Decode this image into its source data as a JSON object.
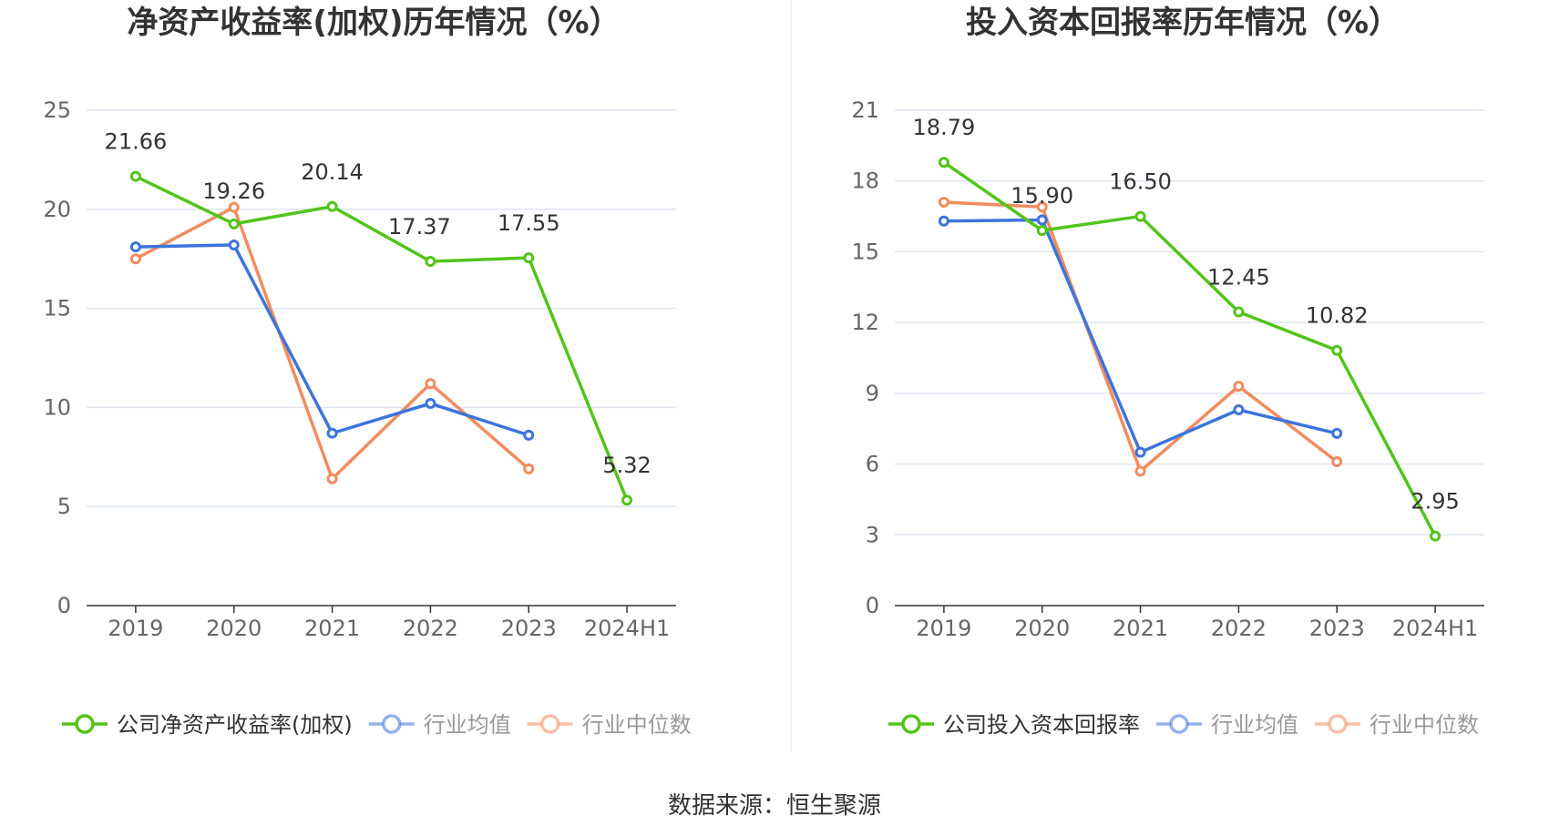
{
  "chart_data": [
    {
      "type": "line",
      "title": "净资产收益率(加权)历年情况（%）",
      "categories": [
        "2019",
        "2020",
        "2021",
        "2022",
        "2023",
        "2024H1"
      ],
      "yticks": [
        "0",
        "5",
        "10",
        "15",
        "20",
        "25"
      ],
      "ylim": [
        0,
        25
      ],
      "grid": true,
      "legend_position": "bottom",
      "series": [
        {
          "name": "公司净资产收益率(加权)",
          "color": "#52c41a",
          "labeled": true,
          "values": [
            21.66,
            19.26,
            20.14,
            17.37,
            17.55,
            5.32
          ],
          "labels": [
            "21.66",
            "19.26",
            "20.14",
            "17.37",
            "17.55",
            "5.32"
          ]
        },
        {
          "name": "行业均值",
          "color": "#3d74db",
          "labeled": false,
          "values": [
            18.1,
            18.2,
            8.7,
            10.2,
            8.6,
            null
          ]
        },
        {
          "name": "行业中位数",
          "color": "#f28c5e",
          "labeled": false,
          "values": [
            17.5,
            20.1,
            6.4,
            11.2,
            6.9,
            null
          ]
        }
      ]
    },
    {
      "type": "line",
      "title": "投入资本回报率历年情况（%）",
      "categories": [
        "2019",
        "2020",
        "2021",
        "2022",
        "2023",
        "2024H1"
      ],
      "yticks": [
        "0",
        "3",
        "6",
        "9",
        "12",
        "15",
        "18",
        "21"
      ],
      "ylim": [
        0,
        21
      ],
      "grid": true,
      "legend_position": "bottom",
      "series": [
        {
          "name": "公司投入资本回报率",
          "color": "#52c41a",
          "labeled": true,
          "values": [
            18.79,
            15.9,
            16.5,
            12.45,
            10.82,
            2.95
          ],
          "labels": [
            "18.79",
            "15.90",
            "16.50",
            "12.45",
            "10.82",
            "2.95"
          ]
        },
        {
          "name": "行业均值",
          "color": "#3d74db",
          "labeled": false,
          "values": [
            16.3,
            16.35,
            6.5,
            8.3,
            7.3,
            null
          ]
        },
        {
          "name": "行业中位数",
          "color": "#f28c5e",
          "labeled": false,
          "values": [
            17.1,
            16.9,
            5.7,
            9.3,
            6.1,
            null
          ]
        }
      ]
    }
  ],
  "source": "数据来源：恒生聚源"
}
